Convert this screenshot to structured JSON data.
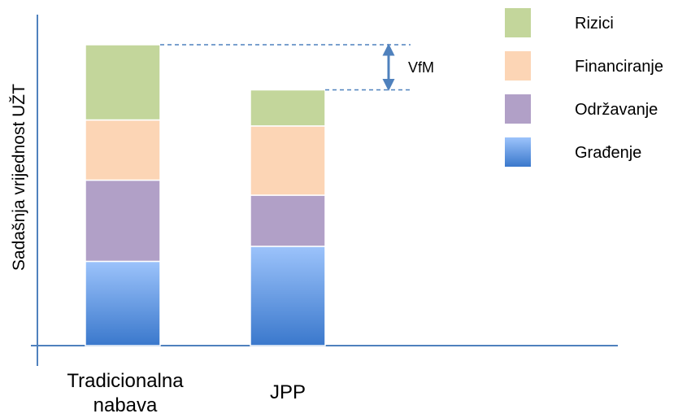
{
  "chart_data": {
    "type": "bar",
    "stacked": true,
    "title": "",
    "ylabel": "Sadašnja vrijednost UŽT",
    "xlabel": "",
    "ylim": [
      0,
      100
    ],
    "categories": [
      {
        "line1": "Tradicionalna",
        "line2": "nabava"
      },
      {
        "line1": "JPP",
        "line2": ""
      }
    ],
    "series": [
      {
        "name": "Građenje",
        "color": "#4a86d0",
        "values": [
          28,
          33
        ]
      },
      {
        "name": "Održavanje",
        "color": "#b1a0c7",
        "values": [
          27,
          17
        ]
      },
      {
        "name": "Financiranje",
        "color": "#fcd5b5",
        "values": [
          20,
          23
        ]
      },
      {
        "name": "Rizici",
        "color": "#c3d69b",
        "values": [
          25,
          12
        ]
      }
    ],
    "legend_order": [
      "Rizici",
      "Financiranje",
      "Održavanje",
      "Građenje"
    ],
    "legend_position": "top-right",
    "annotation": {
      "label": "VfM"
    },
    "grid": false,
    "axis_color": "#4f81bd"
  }
}
